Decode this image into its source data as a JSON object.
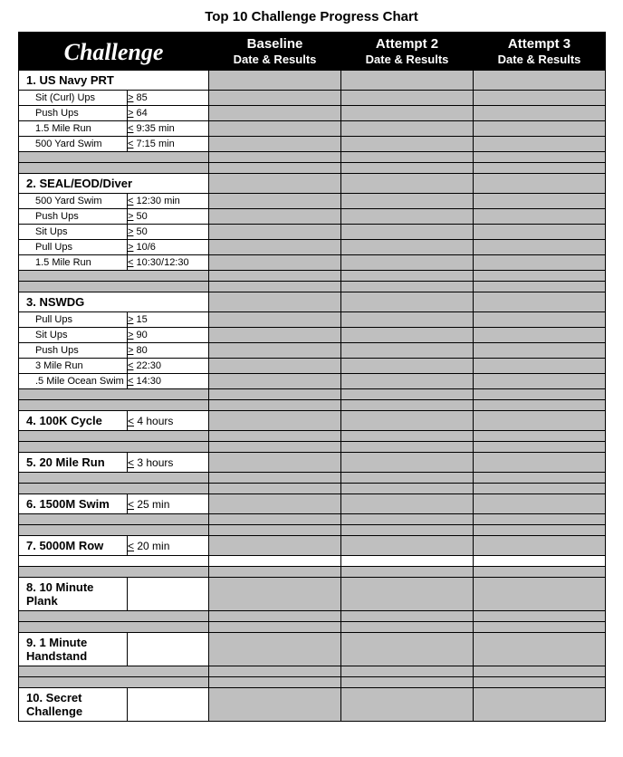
{
  "title": "Top 10 Challenge Progress Chart",
  "header": {
    "challenge": "Challenge",
    "cols": [
      "Baseline",
      "Attempt 2",
      "Attempt 3"
    ],
    "sub": "Date & Results"
  },
  "sections": [
    {
      "label": "1. US Navy PRT",
      "items": [
        {
          "name": "Sit (Curl) Ups",
          "op": ">",
          "val": "85"
        },
        {
          "name": "Push Ups",
          "op": ">",
          "val": "64"
        },
        {
          "name": "1.5 Mile Run",
          "op": "<",
          "val": "9:35 min"
        },
        {
          "name": "500 Yard Swim",
          "op": "<",
          "val": "7:15 min"
        }
      ]
    },
    {
      "label": "2. SEAL/EOD/Diver",
      "items": [
        {
          "name": "500 Yard Swim",
          "op": "<",
          "val": "12:30 min"
        },
        {
          "name": "Push Ups",
          "op": ">",
          "val": "50"
        },
        {
          "name": "Sit Ups",
          "op": ">",
          "val": "50"
        },
        {
          "name": "Pull Ups",
          "op": ">",
          "val": "10/6"
        },
        {
          "name": "1.5 Mile Run",
          "op": "<",
          "val": "10:30/12:30"
        }
      ]
    },
    {
      "label": "3. NSWDG",
      "items": [
        {
          "name": "Pull Ups",
          "op": ">",
          "val": "15"
        },
        {
          "name": "Sit Ups",
          "op": ">",
          "val": "90"
        },
        {
          "name": "Push Ups",
          "op": ">",
          "val": "80"
        },
        {
          "name": "3 Mile Run",
          "op": "<",
          "val": "22:30"
        },
        {
          "name": ".5 Mile Ocean Swim",
          "op": "<",
          "val": "14:30"
        }
      ]
    }
  ],
  "singles": [
    {
      "label": "4. 100K Cycle",
      "op": "<",
      "val": "4 hours"
    },
    {
      "label": "5. 20 Mile Run",
      "op": "<",
      "val": "3 hours"
    },
    {
      "label": "6. 1500M Swim",
      "op": "<",
      "val": "25 min"
    },
    {
      "label": "7. 5000M Row",
      "op": "<",
      "val": "20 min"
    },
    {
      "label": "8. 10 Minute Plank",
      "op": "",
      "val": ""
    },
    {
      "label": "9. 1 Minute Handstand",
      "op": "",
      "val": ""
    },
    {
      "label": "10. Secret Challenge",
      "op": "",
      "val": ""
    }
  ],
  "colors": {
    "band": "#bfbfbf",
    "border": "#000000"
  }
}
